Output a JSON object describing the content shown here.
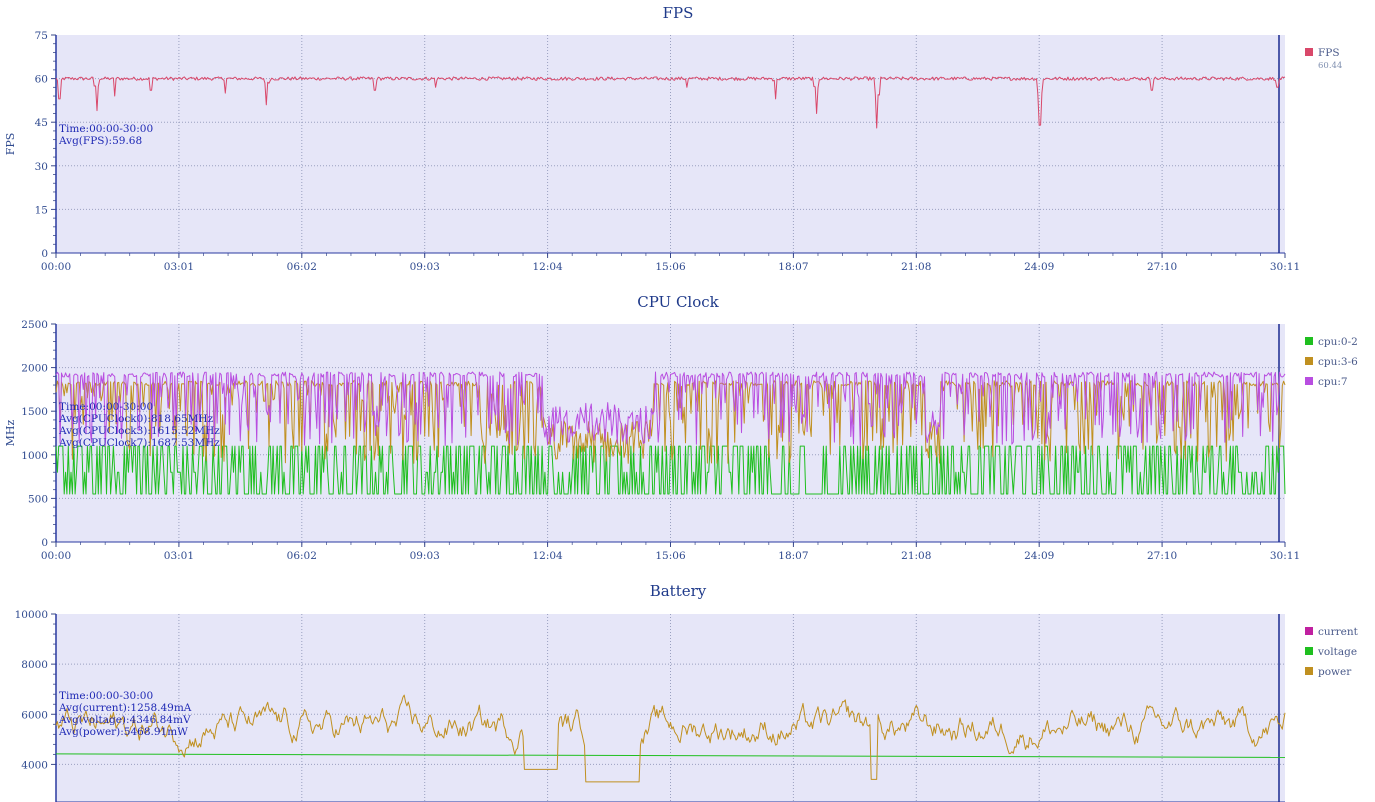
{
  "chart_data": [
    {
      "type": "line",
      "title": "FPS",
      "ylabel": "FPS",
      "ylim": [
        0,
        75
      ],
      "yticks": [
        "0",
        "15",
        "30",
        "45",
        "60",
        "75"
      ],
      "xticks": [
        "00:00",
        "03:01",
        "06:02",
        "09:03",
        "12:04",
        "15:06",
        "18:07",
        "21:08",
        "24:09",
        "27:10",
        "30:11"
      ],
      "xlim_seconds": [
        0,
        1811
      ],
      "grid": true,
      "legend": {
        "placement": "right",
        "entries": [
          {
            "name": "FPS",
            "color": "#d9486a",
            "sub": "60.44"
          }
        ]
      },
      "annotations": [
        "Time:00:00-30:00",
        "Avg(FPS):59.68"
      ],
      "series": [
        {
          "name": "FPS",
          "color": "#d9486a",
          "baseline": 60,
          "noise": 0.6,
          "dips": [
            [
              5,
              53
            ],
            [
              60,
              49
            ],
            [
              86,
              54
            ],
            [
              140,
              56
            ],
            [
              250,
              55
            ],
            [
              310,
              51
            ],
            [
              470,
              56
            ],
            [
              560,
              57
            ],
            [
              930,
              57
            ],
            [
              1060,
              53
            ],
            [
              1120,
              48
            ],
            [
              1210,
              43
            ],
            [
              1450,
              44
            ],
            [
              1615,
              56
            ],
            [
              1800,
              57
            ]
          ]
        }
      ]
    },
    {
      "type": "line",
      "title": "CPU Clock",
      "ylabel": "MHz",
      "ylim": [
        0,
        2500
      ],
      "yticks": [
        "0",
        "500",
        "1000",
        "1500",
        "2000",
        "2500"
      ],
      "xticks": [
        "00:00",
        "03:01",
        "06:02",
        "09:03",
        "12:04",
        "15:06",
        "18:07",
        "21:08",
        "24:09",
        "27:10",
        "30:11"
      ],
      "xlim_seconds": [
        0,
        1811
      ],
      "grid": true,
      "legend": {
        "placement": "right",
        "entries": [
          {
            "name": "cpu:0-2",
            "color": "#1fbf1f"
          },
          {
            "name": "cpu:3-6",
            "color": "#c09020"
          },
          {
            "name": "cpu:7",
            "color": "#b84ee0"
          }
        ]
      },
      "annotations": [
        "Time:00:00-30:00",
        "Avg(CPUClock0):818.65MHz",
        "Avg(CPUClock3):1615.52MHz",
        "Avg(CPUClock7):1687.53MHz"
      ],
      "series": [
        {
          "name": "cpu:0-2",
          "color": "#1fbf1f",
          "levels": [
            550,
            800,
            1100
          ],
          "avg": 818.65
        },
        {
          "name": "cpu:3-6",
          "color": "#c09020",
          "range": [
            900,
            1850
          ],
          "avg": 1615.52
        },
        {
          "name": "cpu:7",
          "color": "#b84ee0",
          "range": [
            1100,
            1950
          ],
          "avg": 1687.53
        }
      ]
    },
    {
      "type": "line",
      "title": "Battery",
      "ylim": [
        2500,
        10000
      ],
      "yticks": [
        "4000",
        "6000",
        "8000",
        "10000"
      ],
      "xticks": [],
      "xlim_seconds": [
        0,
        1811
      ],
      "grid": true,
      "legend": {
        "placement": "right",
        "entries": [
          {
            "name": "current",
            "color": "#c020a0"
          },
          {
            "name": "voltage",
            "color": "#1fbf1f"
          },
          {
            "name": "power",
            "color": "#c09020"
          }
        ]
      },
      "annotations": [
        "Time:00:00-30:00",
        "Avg(current):1258.49mA",
        "Avg(voltage):4346.84mV",
        "Avg(power):5468.91mW"
      ],
      "series": [
        {
          "name": "voltage",
          "color": "#1fbf1f",
          "from": 4420,
          "to": 4280
        },
        {
          "name": "power",
          "color": "#c09020",
          "avg": 5468.91,
          "range": [
            2900,
            7500
          ]
        }
      ]
    }
  ]
}
